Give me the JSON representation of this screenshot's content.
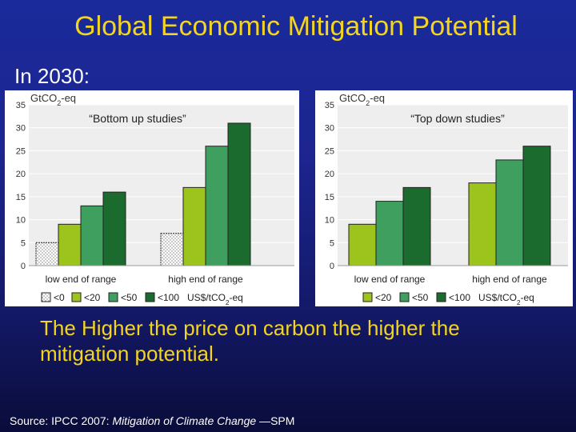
{
  "title": "Global Economic Mitigation Potential",
  "subtitle": "In 2030:",
  "conclusion": "The Higher the price on carbon the higher the mitigation potential.",
  "source": {
    "prefix": "Source:",
    "ref": "IPCC 2007:",
    "work": "Mitigation of Climate Change",
    "suffix": "—SPM"
  },
  "colors": {
    "lt0": "#ffffff",
    "lt20": "#9dc31d",
    "lt50": "#3f9f5f",
    "lt100": "#1b6b2e"
  },
  "chart_data": [
    {
      "type": "bar",
      "title": "“Bottom up studies”",
      "ylabel": "GtCO2-eq",
      "ylim": [
        0,
        35
      ],
      "yticks": [
        "0",
        "5",
        "10",
        "15",
        "20",
        "25",
        "30",
        "35"
      ],
      "grid": true,
      "categories": [
        "low end of range",
        "high end of range"
      ],
      "series": [
        {
          "name": "<0",
          "key": "lt0",
          "values": [
            5,
            7
          ]
        },
        {
          "name": "<20",
          "key": "lt20",
          "values": [
            9,
            17
          ]
        },
        {
          "name": "<50",
          "key": "lt50",
          "values": [
            13,
            26
          ]
        },
        {
          "name": "<100",
          "key": "lt100",
          "values": [
            16,
            31
          ]
        }
      ],
      "legend_unit": "US$/tCO2-eq"
    },
    {
      "type": "bar",
      "title": "“Top down studies”",
      "ylabel": "GtCO2-eq",
      "ylim": [
        0,
        35
      ],
      "yticks": [
        "0",
        "5",
        "10",
        "15",
        "20",
        "25",
        "30",
        "35"
      ],
      "grid": true,
      "categories": [
        "low end of range",
        "high end of range"
      ],
      "series": [
        {
          "name": "<20",
          "key": "lt20",
          "values": [
            9,
            18
          ]
        },
        {
          "name": "<50",
          "key": "lt50",
          "values": [
            14,
            23
          ]
        },
        {
          "name": "<100",
          "key": "lt100",
          "values": [
            17,
            26
          ]
        }
      ],
      "legend_unit": "US$/tCO2-eq"
    }
  ]
}
